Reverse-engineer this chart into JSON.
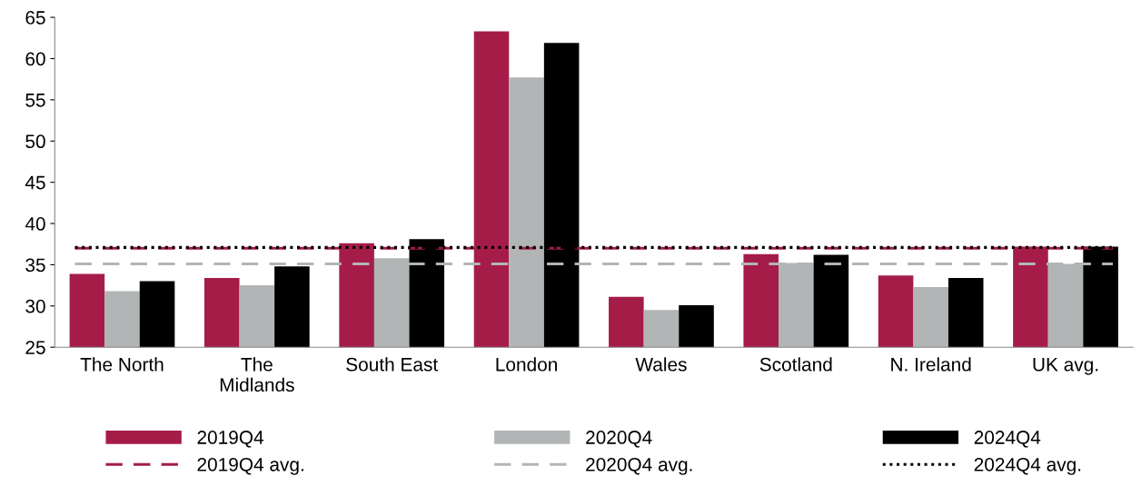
{
  "chart_data": {
    "type": "bar",
    "categories": [
      "The North",
      "The\nMidlands",
      "South East",
      "London",
      "Wales",
      "Scotland",
      "N. Ireland",
      "UK avg."
    ],
    "series": [
      {
        "name": "2019Q4",
        "color": "#a51c49",
        "values": [
          33.9,
          33.4,
          37.6,
          63.3,
          31.1,
          36.3,
          33.7,
          37.2
        ]
      },
      {
        "name": "2020Q4",
        "color": "#b2b5b6",
        "values": [
          31.8,
          32.5,
          35.8,
          57.7,
          29.5,
          35.2,
          32.3,
          35.1
        ]
      },
      {
        "name": "2024Q4",
        "color": "#000000",
        "values": [
          33.0,
          34.8,
          38.1,
          61.9,
          30.1,
          36.2,
          33.4,
          37.2
        ]
      }
    ],
    "ref_lines": [
      {
        "axis": "y",
        "value": 37.0,
        "label": "2019Q4 avg.",
        "color": "#a51c49",
        "line_style": "dashed"
      },
      {
        "axis": "y",
        "value": 35.1,
        "label": "2020Q4 avg.",
        "color": "#b2b5b6",
        "line_style": "dashed"
      },
      {
        "axis": "y",
        "value": 37.1,
        "label": "2024Q4 avg.",
        "color": "#000000",
        "line_style": "dotted"
      }
    ],
    "ylim": [
      25,
      65
    ],
    "yticks": [
      25,
      30,
      35,
      40,
      45,
      50,
      55,
      60,
      65
    ],
    "grid": false,
    "legend": "bottom"
  }
}
